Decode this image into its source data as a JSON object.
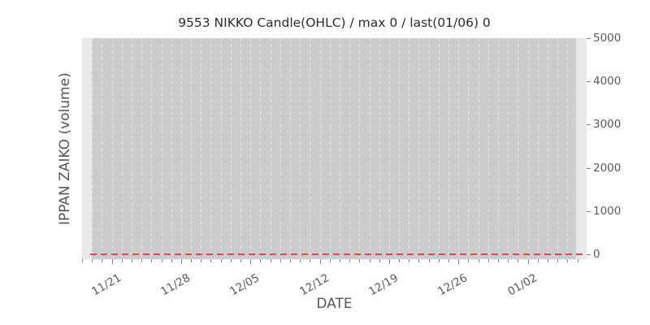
{
  "chart_data": {
    "type": "line",
    "title": "9553 NIKKO Candle(OHLC) / max 0 / last(01/06) 0",
    "xlabel": "DATE",
    "ylabel": "IPPAN ZAIKO (volume)",
    "x_major_tick_labels": [
      "11/21",
      "11/28",
      "12/05",
      "12/12",
      "12/19",
      "12/26",
      "01/02"
    ],
    "x_minor_tick_unit": "day",
    "x_major_tick_unit": "week",
    "xrange": [
      "11/18",
      "01/07"
    ],
    "y_tick_labels": [
      "0",
      "1000",
      "2000",
      "3000",
      "4000",
      "5000"
    ],
    "y_ticks": [
      0,
      1000,
      2000,
      3000,
      4000,
      5000
    ],
    "ylim": [
      -120,
      5060
    ],
    "y_axis_side": "right",
    "series": [
      {
        "name": "IPPAN ZAIKO volume",
        "line_style": "dashed",
        "color": "#cc4d4a",
        "constant_value": 0,
        "values_note": "flat at 0 for the entire date range 11/18 through 01/06"
      }
    ],
    "stats": {
      "max": 0,
      "last_date": "01/06",
      "last_value": 0
    },
    "grid": {
      "vertical_daily_dashed": true,
      "horizontal": false
    },
    "legend_position": "none",
    "colors": {
      "figure_bg": "#ffffff",
      "axes_bg": "#e8e8e8",
      "data_span_bg": "#cccccc",
      "gridline": "#e1e1e1",
      "zero_line": "#cc4d4a",
      "tick_mark": "#808080",
      "tick_label": "#5a5a5a",
      "axis_label": "#555555",
      "title_color": "#2b2b2b"
    },
    "layout_hints": {
      "minor_tick_count": 51,
      "minor_tick_spacing_px": 12.19,
      "major_tick_minor_indices": [
        3,
        10,
        17,
        24,
        31,
        38,
        45
      ],
      "gridline_minor_index_start": 1,
      "gridline_minor_index_end": 49
    }
  }
}
